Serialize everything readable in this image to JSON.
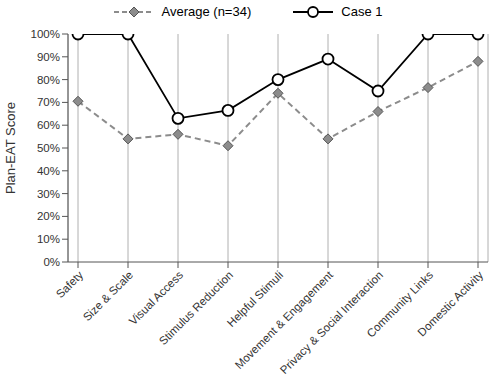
{
  "chart_data": {
    "type": "line",
    "y_label": "Plan-EAT Score",
    "categories": [
      "Safety",
      "Size & Scale",
      "Visual Access",
      "Stimulus Reduction",
      "Helpful Stimuli",
      "Movement & Engagement",
      "Privacy & Social Interaction",
      "Community Links",
      "Domestic Activity"
    ],
    "series": [
      {
        "name": "Average (n=34)",
        "color": "#8c8c8c",
        "line_style": "dashed",
        "marker": "diamond",
        "values": [
          70.5,
          54,
          56,
          51,
          74,
          54,
          66,
          76.5,
          88
        ]
      },
      {
        "name": "Case 1",
        "color": "#000000",
        "line_style": "solid",
        "marker": "circle",
        "values": [
          100,
          100,
          63,
          66.5,
          80,
          89,
          75,
          100,
          100
        ]
      }
    ],
    "ylim": [
      0,
      100
    ],
    "yticks": [
      {
        "value": 0,
        "label": "0%"
      },
      {
        "value": 10,
        "label": "10%"
      },
      {
        "value": 20,
        "label": "20%"
      },
      {
        "value": 30,
        "label": "30%"
      },
      {
        "value": 40,
        "label": "40%"
      },
      {
        "value": 50,
        "label": "50%"
      },
      {
        "value": 60,
        "label": "60%"
      },
      {
        "value": 70,
        "label": "70%"
      },
      {
        "value": 80,
        "label": "80%"
      },
      {
        "value": 90,
        "label": "90%"
      },
      {
        "value": 100,
        "label": "100%"
      }
    ],
    "grid": true,
    "legend": "top"
  }
}
